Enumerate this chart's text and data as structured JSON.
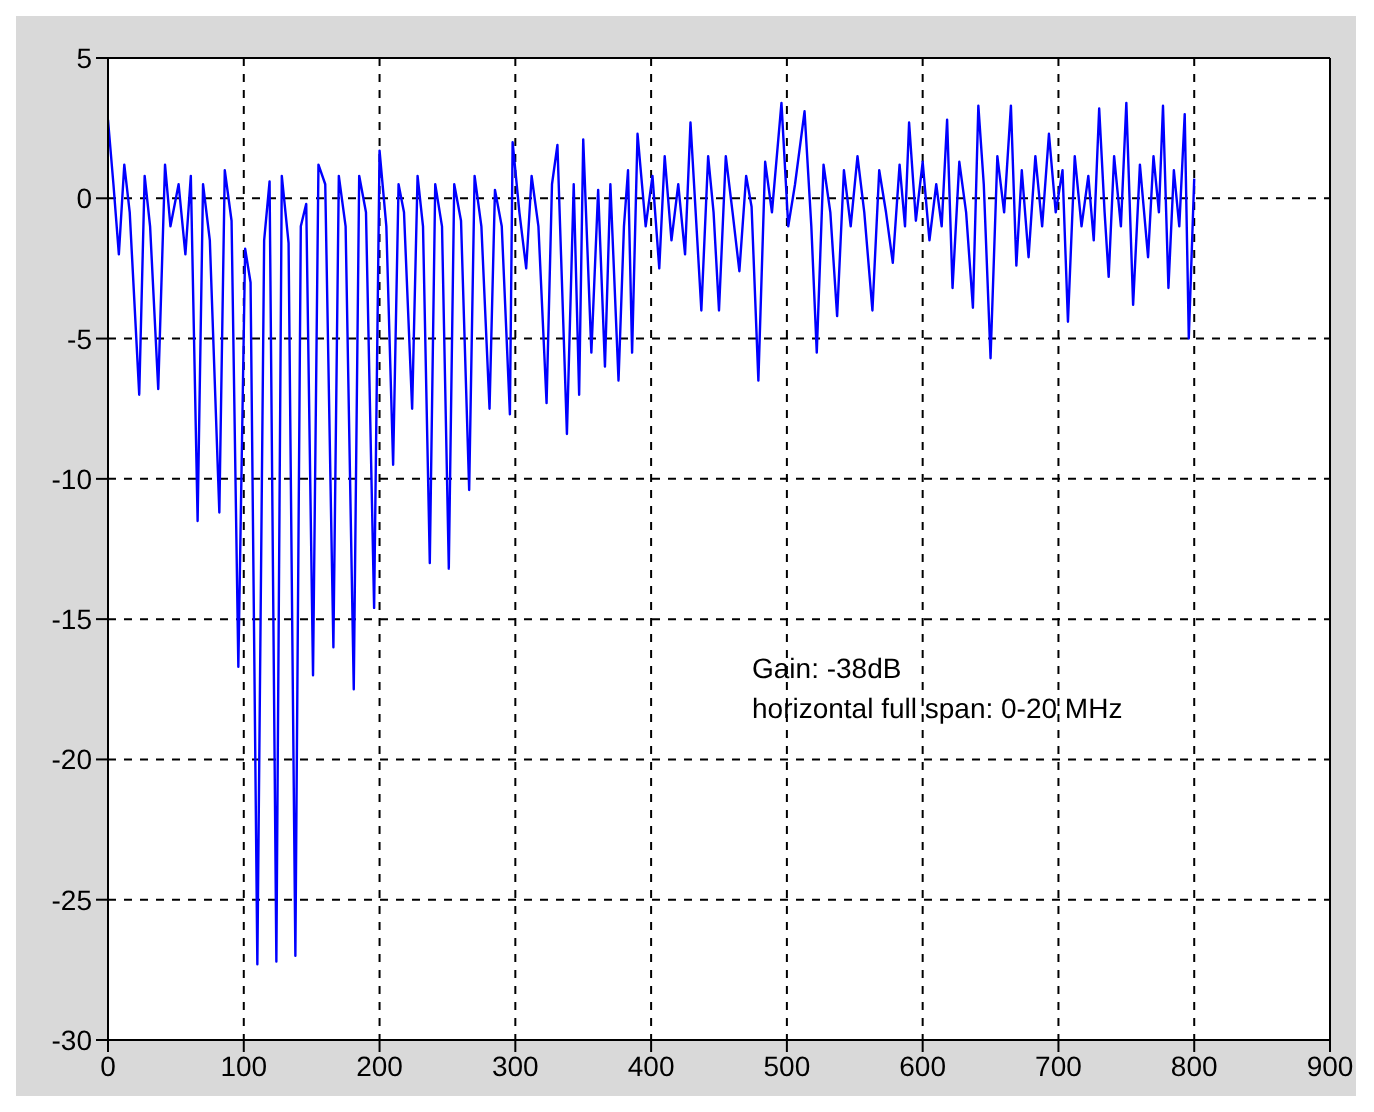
{
  "chart_data": {
    "type": "line",
    "color": "#0000ff",
    "x": [
      0,
      4,
      8,
      12,
      16,
      23,
      27,
      31,
      37,
      42,
      46,
      52,
      57,
      61,
      66,
      70,
      75,
      82,
      86,
      91,
      96,
      101,
      105,
      110,
      115,
      119,
      124,
      128,
      133,
      138,
      142,
      146,
      151,
      155,
      160,
      166,
      170,
      175,
      181,
      185,
      190,
      196,
      200,
      205,
      210,
      214,
      218,
      224,
      228,
      232,
      237,
      241,
      246,
      251,
      255,
      260,
      266,
      270,
      275,
      281,
      285,
      290,
      296,
      298,
      303,
      308,
      312,
      317,
      323,
      327,
      331,
      338,
      343,
      347,
      350,
      356,
      361,
      366,
      370,
      376,
      380,
      383,
      386,
      390,
      396,
      401,
      406,
      410,
      415,
      420,
      425,
      429,
      437,
      442,
      446,
      450,
      455,
      460,
      465,
      470,
      474,
      479,
      484,
      489,
      496,
      501,
      506,
      513,
      518,
      522,
      527,
      532,
      537,
      542,
      547,
      552,
      557,
      563,
      568,
      573,
      578,
      583,
      587,
      590,
      595,
      600,
      605,
      610,
      614,
      618,
      622,
      627,
      632,
      637,
      641,
      645,
      650,
      655,
      660,
      665,
      669,
      673,
      678,
      683,
      688,
      693,
      698,
      703,
      707,
      712,
      717,
      722,
      726,
      730,
      734,
      737,
      741,
      746,
      750,
      755,
      760,
      766,
      770,
      774,
      777,
      781,
      785,
      789,
      793,
      796,
      800
    ],
    "values": [
      2.8,
      0.5,
      -2,
      1.2,
      -0.5,
      -7,
      0.8,
      -1,
      -6.8,
      1.2,
      -1,
      0.5,
      -2,
      0.8,
      -11.5,
      0.5,
      -1.5,
      -11.2,
      1,
      -0.8,
      -16.7,
      -1.8,
      -3,
      -27.3,
      -1.5,
      0.6,
      -27.2,
      0.8,
      -1.6,
      -27,
      -1,
      -0.2,
      -17,
      1.2,
      0.5,
      -16,
      0.8,
      -1,
      -17.5,
      0.8,
      -0.5,
      -14.6,
      1.7,
      -1,
      -9.5,
      0.5,
      -0.5,
      -7.5,
      0.8,
      -1,
      -13,
      0.5,
      -1,
      -13.2,
      0.5,
      -0.8,
      -10.4,
      0.8,
      -1,
      -7.5,
      0.3,
      -1,
      -7.7,
      2,
      -0.5,
      -2.5,
      0.8,
      -1,
      -7.3,
      0.5,
      1.9,
      -8.4,
      0.5,
      -7,
      2.1,
      -5.5,
      0.3,
      -6,
      0.5,
      -6.5,
      -1,
      1,
      -5.5,
      2.3,
      -1,
      0.8,
      -2.5,
      1.5,
      -1.5,
      0.5,
      -2,
      2.7,
      -4,
      1.5,
      -0.5,
      -4,
      1.5,
      -0.5,
      -2.6,
      0.8,
      -0.3,
      -6.5,
      1.3,
      -0.5,
      3.4,
      -1,
      0.5,
      3.1,
      -1,
      -5.5,
      1.2,
      -0.5,
      -4.2,
      1,
      -1,
      1.5,
      -0.5,
      -4,
      1,
      -0.5,
      -2.3,
      1.2,
      -1,
      2.7,
      -0.8,
      1.3,
      -1.5,
      0.5,
      -1,
      2.8,
      -3.2,
      1.3,
      -0.5,
      -3.9,
      3.3,
      0.5,
      -5.7,
      1.5,
      -0.5,
      3.3,
      -2.4,
      1,
      -2.1,
      1.5,
      -1,
      2.3,
      -0.5,
      1,
      -4.4,
      1.5,
      -1,
      0.8,
      -1.5,
      3.2,
      -0.5,
      -2.8,
      1.5,
      -1,
      3.4,
      -3.8,
      1.2,
      -2.1,
      1.5,
      -0.5,
      3.3,
      -3.2,
      1,
      -1,
      3,
      -5,
      0.7
    ],
    "xlim": [
      0,
      900
    ],
    "xticks": [
      0,
      100,
      200,
      300,
      400,
      500,
      600,
      700,
      800,
      900
    ],
    "ylim": [
      -30,
      5
    ],
    "yticks": [
      -30,
      -25,
      -20,
      -15,
      -10,
      -5,
      0,
      5
    ],
    "grid": true,
    "annotations": [
      "Gain: -38dB",
      "horizontal full span: 0-20 MHz"
    ]
  }
}
